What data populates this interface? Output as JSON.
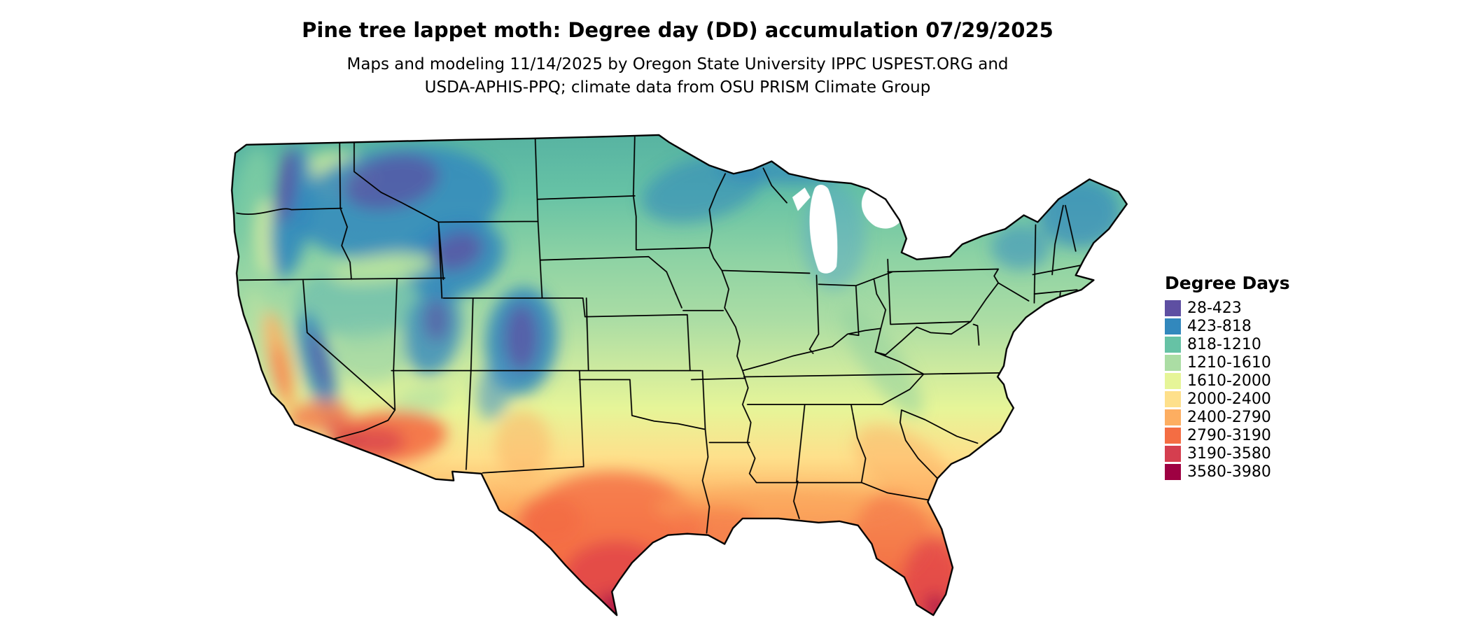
{
  "header": {
    "title": "Pine tree lappet moth: Degree day (DD) accumulation 07/29/2025",
    "subtitle_line1": "Maps and modeling 11/14/2025 by Oregon State University IPPC USPEST.ORG and",
    "subtitle_line2": "USDA-APHIS-PPQ; climate data from OSU PRISM Climate Group"
  },
  "legend": {
    "title": "Degree Days",
    "items": [
      {
        "label": "28-423",
        "color": "#5e4fa2"
      },
      {
        "label": "423-818",
        "color": "#3288bd"
      },
      {
        "label": "818-1210",
        "color": "#66c2a5"
      },
      {
        "label": "1210-1610",
        "color": "#abdda4"
      },
      {
        "label": "1610-2000",
        "color": "#e6f598"
      },
      {
        "label": "2000-2400",
        "color": "#fee08b"
      },
      {
        "label": "2400-2790",
        "color": "#fdae61"
      },
      {
        "label": "2790-3190",
        "color": "#f46d43"
      },
      {
        "label": "3190-3580",
        "color": "#d53e4f"
      },
      {
        "label": "3580-3980",
        "color": "#9e0142"
      }
    ]
  }
}
